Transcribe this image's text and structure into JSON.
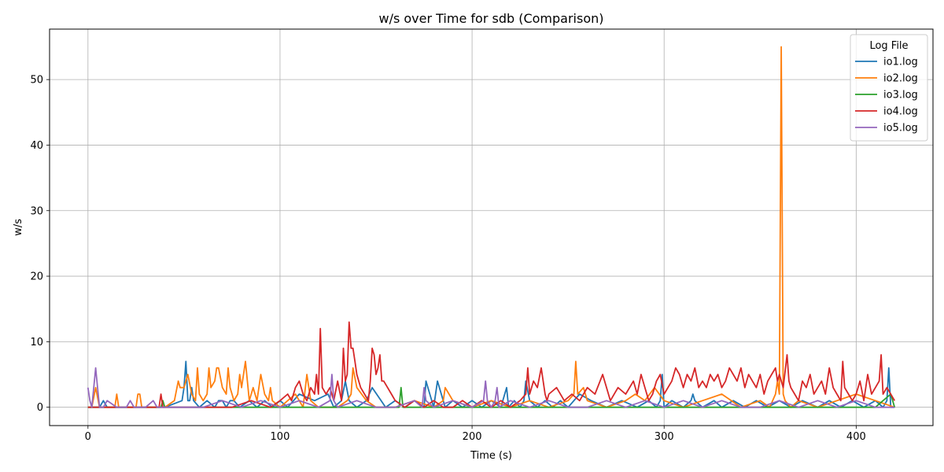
{
  "chart_data": {
    "type": "line",
    "title": "w/s over Time for sdb (Comparison)",
    "xlabel": "Time (s)",
    "ylabel": "w/s",
    "xlim": [
      -20,
      440
    ],
    "ylim": [
      -2.8,
      57.7
    ],
    "xticks": [
      0,
      100,
      200,
      300,
      400
    ],
    "yticks": [
      0,
      10,
      20,
      30,
      40,
      50
    ],
    "grid": true,
    "legend": {
      "title": "Log File",
      "placement": "top-right"
    },
    "series": [
      {
        "name": "io1.log",
        "color": "#1f77b4",
        "x": [
          0,
          2,
          6,
          8,
          10,
          14,
          18,
          30,
          40,
          49,
          50,
          51,
          52,
          53,
          54,
          55,
          58,
          62,
          66,
          68,
          70,
          72,
          74,
          76,
          79,
          84,
          88,
          92,
          96,
          100,
          104,
          110,
          118,
          125,
          128,
          132,
          134,
          136,
          140,
          145,
          148,
          155,
          160,
          165,
          170,
          175,
          176,
          180,
          182,
          186,
          190,
          195,
          200,
          205,
          210,
          215,
          218,
          219,
          222,
          225,
          227,
          228,
          230,
          234,
          238,
          242,
          246,
          250,
          256,
          262,
          270,
          278,
          286,
          292,
          296,
          298,
          299,
          300,
          304,
          310,
          314,
          315,
          316,
          320,
          326,
          330,
          336,
          342,
          348,
          354,
          360,
          366,
          372,
          380,
          386,
          392,
          398,
          404,
          410,
          414,
          416,
          417,
          418,
          420
        ],
        "y": [
          0,
          0,
          0,
          1,
          0,
          0,
          0,
          0,
          0,
          1,
          3,
          7,
          1,
          1,
          3,
          1,
          0,
          1,
          0,
          1,
          1,
          0,
          1,
          1,
          0,
          1,
          0,
          1,
          0,
          1,
          0,
          2,
          1,
          2,
          0,
          1,
          4,
          1,
          0,
          1,
          3,
          0,
          1,
          0,
          1,
          0,
          4,
          0,
          4,
          0,
          1,
          0,
          1,
          0,
          1,
          0,
          3,
          0,
          1,
          0,
          1,
          4,
          1,
          0,
          1,
          0,
          1,
          0,
          2,
          1,
          0,
          1,
          0,
          1,
          0,
          1,
          5,
          0,
          1,
          0,
          1,
          2,
          1,
          0,
          1,
          0,
          1,
          0,
          1,
          0,
          1,
          0,
          1,
          0,
          1,
          0,
          1,
          0,
          1,
          0,
          1,
          6,
          0,
          0
        ]
      },
      {
        "name": "io2.log",
        "color": "#ff7f0e",
        "x": [
          0,
          2,
          4,
          6,
          10,
          14,
          15,
          16,
          20,
          25,
          26,
          27,
          28,
          30,
          35,
          40,
          45,
          47,
          48,
          50,
          52,
          54,
          56,
          57,
          58,
          60,
          62,
          63,
          64,
          66,
          67,
          68,
          70,
          72,
          73,
          74,
          76,
          78,
          79,
          80,
          82,
          84,
          86,
          87,
          88,
          90,
          92,
          94,
          95,
          96,
          100,
          104,
          108,
          110,
          112,
          114,
          116,
          120,
          125,
          130,
          135,
          137,
          138,
          140,
          145,
          150,
          160,
          170,
          180,
          185,
          186,
          188,
          190,
          200,
          210,
          220,
          230,
          240,
          250,
          253,
          254,
          255,
          258,
          260,
          270,
          280,
          285,
          290,
          295,
          300,
          310,
          320,
          330,
          340,
          350,
          355,
          358,
          359,
          360,
          361,
          362,
          363,
          366,
          370,
          380,
          390,
          400,
          410,
          420
        ],
        "y": [
          0,
          0,
          3,
          0,
          0,
          0,
          2,
          0,
          0,
          0,
          2,
          2,
          0,
          0,
          0,
          0,
          1,
          4,
          3,
          3,
          5,
          2,
          1,
          6,
          2,
          1,
          2,
          6,
          3,
          4,
          6,
          6,
          3,
          2,
          6,
          3,
          1,
          2,
          5,
          3,
          7,
          1,
          3,
          2,
          1,
          5,
          2,
          1,
          3,
          1,
          0,
          1,
          2,
          1,
          0,
          5,
          1,
          0,
          0,
          0,
          1,
          2,
          6,
          3,
          1,
          0,
          0,
          1,
          0,
          1,
          3,
          2,
          1,
          0,
          1,
          0,
          1,
          0,
          1,
          2,
          7,
          2,
          3,
          1,
          0,
          1,
          2,
          1,
          3,
          1,
          0,
          1,
          2,
          0,
          1,
          0,
          2,
          4,
          2,
          55,
          2,
          1,
          0,
          1,
          0,
          1,
          2,
          1,
          0
        ]
      },
      {
        "name": "io3.log",
        "color": "#2ca02c",
        "x": [
          0,
          10,
          20,
          30,
          38,
          39,
          40,
          50,
          60,
          80,
          100,
          120,
          140,
          160,
          162,
          163,
          164,
          180,
          200,
          220,
          240,
          260,
          280,
          300,
          320,
          340,
          360,
          380,
          400,
          410,
          414,
          418,
          420
        ],
        "y": [
          0,
          0,
          0,
          0,
          0,
          1,
          0,
          0,
          0,
          0,
          0,
          0,
          0,
          0,
          0,
          3,
          0,
          0,
          0,
          0,
          0,
          0,
          0,
          0,
          0,
          0,
          0,
          0,
          0,
          0,
          1,
          2,
          0
        ]
      },
      {
        "name": "io4.log",
        "color": "#d62728",
        "x": [
          0,
          10,
          20,
          30,
          37,
          38,
          39,
          45,
          55,
          65,
          75,
          85,
          95,
          100,
          104,
          106,
          108,
          110,
          112,
          114,
          116,
          118,
          119,
          120,
          121,
          122,
          124,
          126,
          128,
          130,
          132,
          133,
          134,
          135,
          136,
          137,
          138,
          139,
          140,
          141,
          142,
          144,
          146,
          147,
          148,
          149,
          150,
          151,
          152,
          153,
          154,
          156,
          158,
          160,
          165,
          170,
          175,
          180,
          185,
          190,
          195,
          200,
          205,
          210,
          215,
          220,
          225,
          228,
          229,
          230,
          232,
          234,
          236,
          238,
          239,
          240,
          244,
          248,
          252,
          256,
          260,
          264,
          268,
          272,
          276,
          280,
          284,
          286,
          288,
          290,
          292,
          294,
          296,
          298,
          300,
          302,
          304,
          306,
          308,
          310,
          312,
          314,
          316,
          318,
          320,
          322,
          324,
          326,
          328,
          330,
          332,
          334,
          336,
          338,
          340,
          342,
          344,
          346,
          348,
          350,
          352,
          354,
          356,
          358,
          359,
          360,
          362,
          364,
          365,
          366,
          368,
          370,
          372,
          374,
          376,
          378,
          380,
          382,
          384,
          386,
          388,
          390,
          392,
          393,
          394,
          396,
          398,
          400,
          402,
          404,
          406,
          408,
          410,
          412,
          413,
          414,
          416,
          418,
          420
        ],
        "y": [
          0,
          0,
          0,
          0,
          0,
          2,
          0,
          0,
          0,
          0,
          0,
          1,
          0,
          1,
          2,
          1,
          3,
          4,
          2,
          1,
          3,
          2,
          5,
          2,
          12,
          3,
          2,
          3,
          1,
          4,
          1,
          9,
          4,
          5,
          13,
          9,
          9,
          7,
          5,
          4,
          3,
          2,
          1,
          4,
          9,
          8,
          5,
          6,
          8,
          4,
          4,
          3,
          2,
          1,
          0,
          1,
          0,
          1,
          0,
          0,
          1,
          0,
          1,
          0,
          1,
          0,
          1,
          2,
          6,
          2,
          4,
          3,
          6,
          2,
          1,
          2,
          3,
          1,
          2,
          1,
          3,
          2,
          5,
          1,
          3,
          2,
          4,
          2,
          5,
          3,
          1,
          2,
          4,
          5,
          2,
          3,
          4,
          6,
          5,
          3,
          5,
          4,
          6,
          3,
          4,
          3,
          5,
          4,
          5,
          3,
          4,
          6,
          5,
          4,
          6,
          3,
          5,
          4,
          3,
          5,
          2,
          4,
          5,
          6,
          4,
          5,
          3,
          8,
          4,
          3,
          2,
          1,
          4,
          3,
          5,
          2,
          3,
          4,
          2,
          6,
          3,
          2,
          1,
          7,
          3,
          2,
          1,
          2,
          4,
          1,
          5,
          2,
          3,
          4,
          8,
          2,
          3,
          2,
          1
        ]
      },
      {
        "name": "io5.log",
        "color": "#9467bd",
        "x": [
          0,
          1,
          2,
          3,
          4,
          5,
          6,
          8,
          10,
          15,
          20,
          22,
          24,
          30,
          34,
          36,
          40,
          50,
          60,
          70,
          80,
          90,
          100,
          110,
          120,
          126,
          127,
          128,
          130,
          140,
          150,
          160,
          170,
          174,
          175,
          176,
          180,
          190,
          200,
          206,
          207,
          208,
          210,
          212,
          213,
          214,
          220,
          230,
          240,
          250,
          260,
          270,
          280,
          290,
          300,
          310,
          320,
          330,
          340,
          350,
          360,
          370,
          380,
          390,
          400,
          410,
          418,
          420
        ],
        "y": [
          3,
          1,
          0,
          3,
          6,
          3,
          0,
          0,
          1,
          0,
          0,
          1,
          0,
          0,
          1,
          0,
          0,
          0,
          0,
          1,
          0,
          1,
          0,
          1,
          0,
          1,
          5,
          1,
          0,
          1,
          0,
          0,
          1,
          0,
          3,
          1,
          0,
          1,
          0,
          1,
          4,
          1,
          0,
          1,
          3,
          0,
          1,
          0,
          1,
          0,
          0,
          1,
          0,
          1,
          0,
          1,
          0,
          1,
          0,
          0,
          1,
          0,
          1,
          0,
          1,
          0,
          0,
          0
        ]
      }
    ]
  }
}
